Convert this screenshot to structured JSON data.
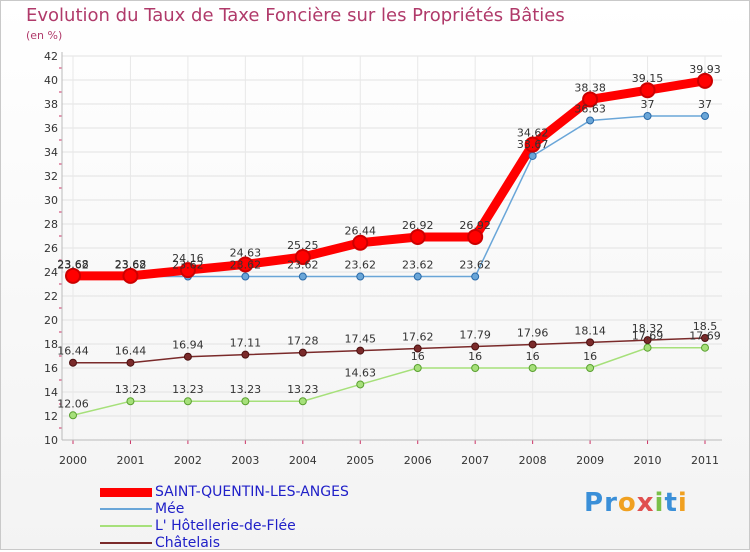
{
  "chart_data": {
    "type": "line",
    "title": "Evolution du Taux de Taxe Foncière sur les Propriétés Bâties",
    "subtitle": "(en %)",
    "x": [
      "2000",
      "2001",
      "2002",
      "2003",
      "2004",
      "2005",
      "2006",
      "2007",
      "2008",
      "2009",
      "2010",
      "2011"
    ],
    "ylim": [
      10,
      42
    ],
    "yticks": [
      10,
      12,
      14,
      16,
      18,
      20,
      22,
      24,
      26,
      28,
      30,
      32,
      34,
      36,
      38,
      40,
      42
    ],
    "grid": true,
    "legend_position": "bottom-left",
    "series": [
      {
        "name": "SAINT-QUENTIN-LES-ANGES",
        "color": "#ff0000",
        "values": [
          23.68,
          23.68,
          24.16,
          24.63,
          25.25,
          26.44,
          26.92,
          26.92,
          34.62,
          38.38,
          39.15,
          39.93
        ],
        "labels": [
          "23.68",
          "23.68",
          "24.16",
          "24.63",
          "25.25",
          "26.44",
          "26.92",
          "26.92",
          "34.62",
          "38.38",
          "39.15",
          "39.93"
        ]
      },
      {
        "name": "Mée",
        "color": "#6aa6d8",
        "values": [
          23.62,
          23.62,
          23.62,
          23.62,
          23.62,
          23.62,
          23.62,
          23.62,
          33.67,
          36.63,
          37,
          37
        ],
        "labels": [
          "23.62",
          "23.62",
          "23.62",
          "23.62",
          "23.62",
          "23.62",
          "23.62",
          "23.62",
          "33.67",
          "36.63",
          "37",
          "37"
        ]
      },
      {
        "name": "L' Hôtellerie-de-Flée",
        "color": "#a6e07a",
        "values": [
          12.06,
          13.23,
          13.23,
          13.23,
          13.23,
          14.63,
          16,
          16,
          16,
          16,
          17.69,
          17.69
        ],
        "labels": [
          "12.06",
          "13.23",
          "13.23",
          "13.23",
          "13.23",
          "14.63",
          "16",
          "16",
          "16",
          "16",
          "17.69",
          "17.69"
        ]
      },
      {
        "name": "Châtelais",
        "color": "#7a2a2a",
        "values": [
          16.44,
          16.44,
          16.94,
          17.11,
          17.28,
          17.45,
          17.62,
          17.79,
          17.96,
          18.14,
          18.32,
          18.5
        ],
        "labels": [
          "16.44",
          "16.44",
          "16.94",
          "17.11",
          "17.28",
          "17.45",
          "17.62",
          "17.79",
          "17.96",
          "18.14",
          "18.32",
          "18.5"
        ]
      }
    ]
  },
  "logo": {
    "letters": [
      "P",
      "r",
      "o",
      "x",
      "i",
      "t",
      "i"
    ],
    "colors": [
      "#3a8fd8",
      "#3a8fd8",
      "#f0a020",
      "#e05050",
      "#7ac04a",
      "#3a8fd8",
      "#f0a020"
    ]
  }
}
